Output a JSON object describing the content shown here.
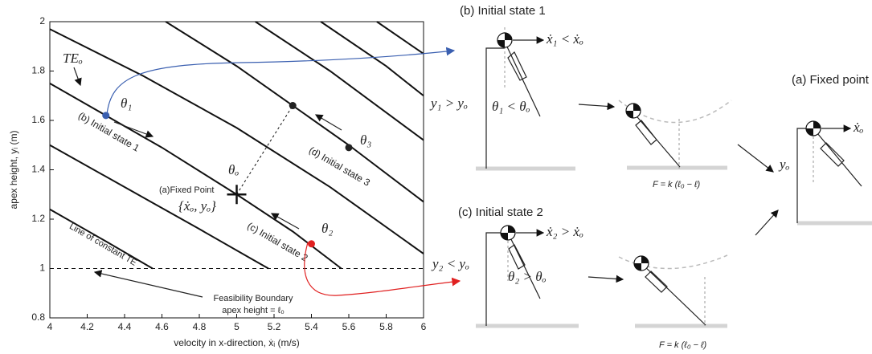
{
  "chart_data": {
    "type": "line",
    "xlabel": "velocity in x-direction, ẋᵢ (m/s)",
    "ylabel": "apex height, yᵢ (m)",
    "xlim": [
      4,
      6
    ],
    "ylim": [
      0.8,
      2
    ],
    "xticks": [
      4,
      4.2,
      4.4,
      4.6,
      4.8,
      5,
      5.2,
      5.4,
      5.6,
      5.8,
      6
    ],
    "yticks": [
      0.8,
      1,
      1.2,
      1.4,
      1.6,
      1.8,
      2
    ],
    "series": [
      {
        "color": "#111111",
        "x": [
          4,
          4.3,
          4.55
        ],
        "values": [
          1.24,
          1.11,
          1
        ]
      },
      {
        "color": "#111111",
        "x": [
          4,
          4.4,
          4.8,
          5.1,
          5.17
        ],
        "values": [
          1.5,
          1.33,
          1.16,
          1.03,
          1
        ]
      },
      {
        "color": "#111111",
        "x": [
          4,
          4.3,
          4.6,
          5,
          5.3,
          5.56
        ],
        "values": [
          1.75,
          1.62,
          1.49,
          1.3,
          1.15,
          1
        ]
      },
      {
        "color": "#111111",
        "x": [
          4,
          4.5,
          5,
          5.5,
          6
        ],
        "values": [
          1.97,
          1.78,
          1.57,
          1.33,
          1.06
        ]
      },
      {
        "color": "#111111",
        "x": [
          4.62,
          5,
          5.3,
          5.6,
          6
        ],
        "values": [
          2,
          1.82,
          1.66,
          1.5,
          1.27
        ]
      },
      {
        "color": "#111111",
        "x": [
          5.1,
          5.5,
          6
        ],
        "values": [
          2,
          1.8,
          1.52
        ]
      },
      {
        "color": "#111111",
        "x": [
          5.45,
          5.8,
          6
        ],
        "values": [
          2,
          1.82,
          1.7
        ]
      },
      {
        "color": "#111111",
        "x": [
          5.75,
          6
        ],
        "values": [
          2,
          1.87
        ]
      }
    ],
    "points": [
      {
        "x": 4.3,
        "y": 1.62,
        "color": "#3a5fb0"
      },
      {
        "x": 5.4,
        "y": 1.1,
        "color": "#e02020"
      },
      {
        "x": 5.6,
        "y": 1.49,
        "color": "#222222"
      },
      {
        "x": 5.3,
        "y": 1.66,
        "color": "#222222"
      }
    ],
    "fixed_point": {
      "x": 5,
      "y": 1.3
    },
    "boundary": {
      "y": 1
    },
    "annotations": [
      "TEₒ",
      "θ₁",
      "(b) Initial state 1",
      "θ₃",
      "(d) Initial state 3",
      "θₒ",
      "(a)Fixed Point",
      "{ẋₒ, yₒ}",
      "(c) Initial state 2",
      "θ₂",
      "Line of constant TE",
      "Feasibility Boundary",
      "apex height = ℓ₀"
    ]
  },
  "diagram": {
    "b_title": "(b) Initial state 1",
    "b_velocity": "ẋ₁ < ẋₒ",
    "b_height": "y₁ > yₒ",
    "b_angle": "θ₁ < θₒ",
    "b_force": "F = k (ℓ₀ − ℓ)",
    "c_title": "(c) Initial state 2",
    "c_velocity": "ẋ₂ > ẋₒ",
    "c_height": "y₂ < yₒ",
    "c_angle": "θ₂ > θₒ",
    "c_force": "F = k (ℓ₀ − ℓ)",
    "a_title": "(a) Fixed point",
    "a_velocity": "ẋₒ",
    "a_height": "yₒ"
  }
}
